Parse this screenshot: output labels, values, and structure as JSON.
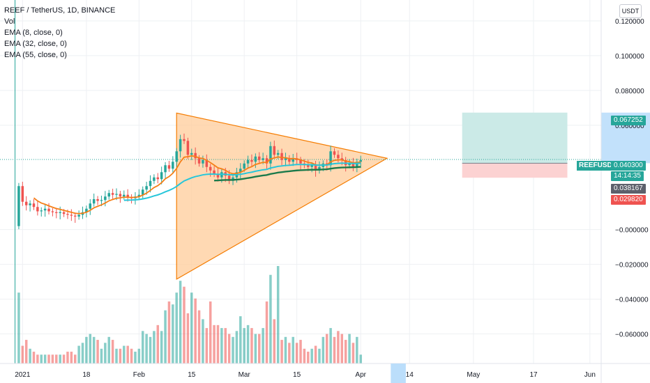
{
  "legend": {
    "title": "REEF / TetherUS, 1D, BINANCE",
    "vol": "Vol",
    "ema8": "EMA (8, close, 0)",
    "ema32": "EMA (32, close, 0)",
    "ema55": "EMA (55, close, 0)"
  },
  "currency_label": "USDT",
  "symbol_label": "REEFUSDT",
  "price_tags": {
    "target": "0.067252",
    "last": "0.040300",
    "countdown": "14:14:35",
    "entry": "0.038167",
    "stop": "0.029820"
  },
  "colors": {
    "up": "#26a69a",
    "down": "#ef5350",
    "ema8": "#f57f17",
    "ema32": "#26c6da",
    "ema55": "#1b7a4b",
    "triangle_stroke": "#f57c00",
    "triangle_fill": "#ffcc99",
    "target_zone": "#cbeae7",
    "stop_zone": "#fcd2d2",
    "gray_tag": "#5d606b",
    "grid": "#eef0f3"
  },
  "chart_data": {
    "type": "candlestick",
    "x_axis": {
      "type": "date",
      "range": [
        "2020-12-26",
        "2021-06-04"
      ],
      "tick_labels": [
        {
          "date": "2021-01-01",
          "label": "2021"
        },
        {
          "date": "2021-01-18",
          "label": "18"
        },
        {
          "date": "2021-02-01",
          "label": "Feb"
        },
        {
          "date": "2021-02-15",
          "label": "15"
        },
        {
          "date": "2021-03-01",
          "label": "Mar"
        },
        {
          "date": "2021-03-15",
          "label": "15"
        },
        {
          "date": "2021-04-01",
          "label": "Apr"
        },
        {
          "date": "2021-04-14",
          "label": "14"
        },
        {
          "date": "2021-05-01",
          "label": "May"
        },
        {
          "date": "2021-05-17",
          "label": "17"
        },
        {
          "date": "2021-06-01",
          "label": "Jun"
        }
      ]
    },
    "y_axis": {
      "range": [
        -0.077,
        0.132
      ],
      "tick_values": [
        0.12,
        0.1,
        0.08,
        0.06,
        -0.0,
        -0.02,
        -0.04,
        -0.06
      ],
      "tick_labels": [
        "0.120000",
        "0.100000",
        "0.080000",
        "0.060000",
        "−0.000000",
        "−0.020000",
        "−0.040000",
        "−0.060000"
      ]
    },
    "grid": true,
    "candles": {
      "start_date": "2020-12-31",
      "close": [
        0.025,
        0.016,
        0.014,
        0.015,
        0.013,
        0.0105,
        0.011,
        0.012,
        0.0105,
        0.01,
        0.0095,
        0.01,
        0.009,
        0.0085,
        0.008,
        0.0075,
        0.0085,
        0.01,
        0.012,
        0.015,
        0.0175,
        0.0165,
        0.017,
        0.019,
        0.021,
        0.02,
        0.0205,
        0.019,
        0.02,
        0.0185,
        0.018,
        0.019,
        0.02,
        0.023,
        0.025,
        0.028,
        0.03,
        0.029,
        0.033,
        0.037,
        0.035,
        0.039,
        0.045,
        0.052,
        0.051,
        0.043,
        0.044,
        0.041,
        0.038,
        0.04,
        0.036,
        0.034,
        0.032,
        0.03,
        0.033,
        0.031,
        0.028,
        0.03,
        0.033,
        0.035,
        0.038,
        0.04,
        0.039,
        0.042,
        0.04,
        0.041,
        0.038,
        0.048,
        0.043,
        0.044,
        0.04,
        0.041,
        0.039,
        0.041,
        0.04,
        0.038,
        0.037,
        0.036,
        0.037,
        0.034,
        0.036,
        0.038,
        0.037,
        0.045,
        0.043,
        0.041,
        0.04,
        0.037,
        0.038,
        0.036,
        0.039,
        0.04
      ],
      "note": "open of each candle equals the previous close"
    },
    "volume": {
      "values": [
        24,
        6,
        8,
        5,
        4,
        3,
        3,
        3,
        3,
        3,
        3,
        3,
        3,
        4,
        4,
        3,
        6,
        7,
        9,
        10,
        9,
        8,
        5,
        7,
        9,
        8,
        5,
        5,
        6,
        6,
        5,
        4,
        5,
        11,
        10,
        9,
        11,
        13,
        11,
        18,
        21,
        20,
        24,
        28,
        26,
        17,
        24,
        22,
        18,
        15,
        12,
        21,
        13,
        13,
        12,
        12,
        10,
        9,
        11,
        16,
        12,
        13,
        12,
        10,
        10,
        12,
        21,
        30,
        15,
        33,
        8,
        9,
        7,
        9,
        7,
        8,
        5,
        4,
        5,
        6,
        5,
        9,
        10,
        12,
        9,
        11,
        10,
        8,
        10,
        7,
        9,
        3
      ]
    },
    "ema_overlays": [
      {
        "name": "EMA (8, close, 0)",
        "color_key": "ema8"
      },
      {
        "name": "EMA (32, close, 0)",
        "color_key": "ema32"
      },
      {
        "name": "EMA (55, close, 0)",
        "color_key": "ema55"
      }
    ],
    "drawings": {
      "triangle": [
        {
          "date": "2021-02-11",
          "price": 0.067
        },
        {
          "date": "2021-04-08",
          "price": 0.041
        },
        {
          "date": "2021-02-11",
          "price": -0.0285
        }
      ],
      "long_position": {
        "start_date": "2021-04-28",
        "end_date": "2021-05-26",
        "entry": 0.038167,
        "target": 0.067252,
        "stop": 0.02982
      },
      "vertical_line_date": "2020-12-30",
      "future_highlight": {
        "start_date": "2021-04-09",
        "end_date": "2021-04-13"
      }
    },
    "last_price": 0.0403
  }
}
